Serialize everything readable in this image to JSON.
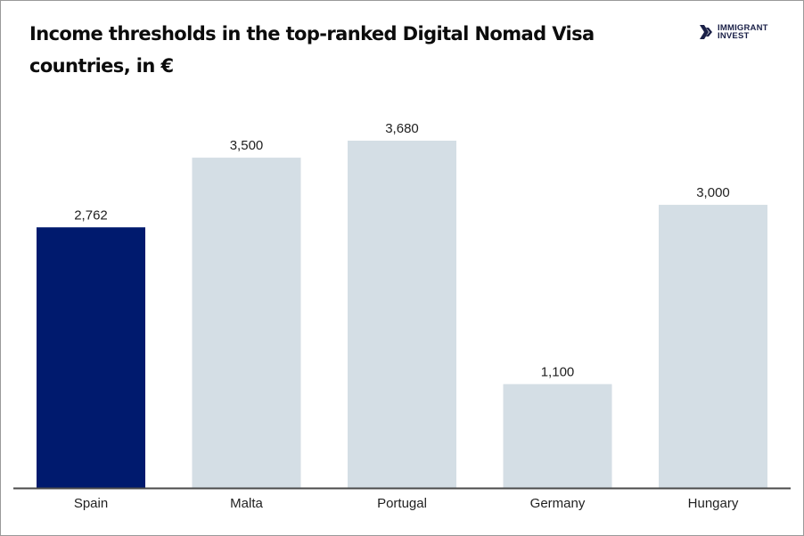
{
  "chart_data": {
    "type": "bar",
    "title": "Income thresholds in the top-ranked Digital Nomad Visa countries, in €",
    "categories": [
      "Spain",
      "Malta",
      "Portugal",
      "Germany",
      "Hungary"
    ],
    "values": [
      2762,
      3500,
      3680,
      1100,
      3000
    ],
    "value_labels": [
      "2,762",
      "3,500",
      "3,680",
      "1,100",
      "3,000"
    ],
    "highlight_index": 0,
    "xlabel": "",
    "ylabel": "",
    "ylim": [
      0,
      3680
    ],
    "grid": false,
    "legend": "none",
    "colors": {
      "highlight": "#001a6e",
      "default": "#d4dee5",
      "baseline": "#4a4a4a"
    }
  },
  "header": {
    "title_line1": "Income thresholds in the top-ranked Digital Nomad Visa",
    "title_line2": "countries, in €"
  },
  "brand": {
    "icon": "double-chevron-icon",
    "line1": "IMMIGRANT",
    "line2": "INVEST"
  }
}
